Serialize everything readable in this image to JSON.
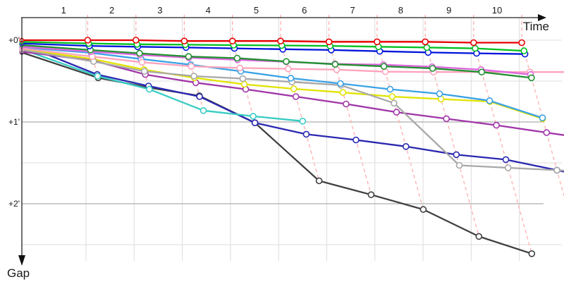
{
  "chart_data": {
    "type": "line",
    "title": "",
    "xlabel": "Time",
    "ylabel": "Gap",
    "x_axis": {
      "tick_labels": [
        "1",
        "2",
        "3",
        "4",
        "5",
        "6",
        "7",
        "8",
        "9",
        "10"
      ],
      "range_time_units": [
        0,
        11.4
      ]
    },
    "y_axis": {
      "tick_labels": [
        "+0'",
        "+1'",
        "+2'"
      ],
      "tick_gaps_minutes": [
        0,
        1,
        2
      ],
      "range_minutes": [
        0,
        2.75
      ],
      "direction": "down"
    },
    "grid": {
      "vertical_count": 10,
      "horizontal_gaps_minutes": [
        0,
        0.5,
        1,
        1.5,
        2,
        2.5
      ],
      "dark_gaps": [
        1,
        2
      ]
    },
    "controls": {
      "count": 10,
      "leader_crossing_times": [
        1.5,
        2.5,
        3.5,
        4.5,
        5.5,
        6.5,
        7.5,
        8.5,
        9.5,
        10.5
      ],
      "dashed_line_color": "#ffb0b0",
      "description": "dashed pink lines link the same control point across all runners"
    },
    "marker_style": {
      "fill": "#ffffff",
      "radius": 4
    },
    "series": [
      {
        "name": "red",
        "color": "#e80000",
        "start_gap": 0.0,
        "control_gaps": [
          0.0,
          0.0,
          0.01,
          0.01,
          0.01,
          0.02,
          0.02,
          0.02,
          0.03,
          0.03
        ],
        "extend_to_edge": false
      },
      {
        "name": "green",
        "color": "#00c020",
        "start_gap": 0.02,
        "control_gaps": [
          0.04,
          0.05,
          0.055,
          0.06,
          0.065,
          0.07,
          0.08,
          0.09,
          0.1,
          0.13
        ],
        "extend_to_edge": false
      },
      {
        "name": "blue",
        "color": "#0014dc",
        "start_gap": 0.04,
        "control_gaps": [
          0.07,
          0.08,
          0.09,
          0.1,
          0.11,
          0.12,
          0.135,
          0.15,
          0.16,
          0.17
        ],
        "extend_to_edge": false
      },
      {
        "name": "dark-green",
        "color": "#209030",
        "start_gap": 0.06,
        "control_gaps": [
          0.12,
          0.16,
          0.2,
          0.22,
          0.26,
          0.295,
          0.32,
          0.345,
          0.39,
          0.46
        ],
        "extend_to_edge": false
      },
      {
        "name": "violet",
        "color": "#dd66dd",
        "start_gap": 0.08,
        "control_gaps": [
          0.14,
          0.18,
          0.215,
          0.24,
          0.265,
          0.29,
          0.3,
          0.325,
          0.36,
          0.42
        ],
        "extend_to_edge": false
      },
      {
        "name": "pink",
        "color": "#ffa3bc",
        "start_gap": 0.1,
        "control_gaps": [
          0.2,
          0.27,
          0.32,
          0.34,
          0.35,
          0.36,
          0.385,
          0.39,
          0.39,
          0.39
        ],
        "extend_to_edge": true
      },
      {
        "name": "sky-blue",
        "color": "#3aa2e6",
        "start_gap": 0.09,
        "control_gaps": [
          0.155,
          0.23,
          0.3,
          0.38,
          0.465,
          0.53,
          0.6,
          0.655,
          0.74,
          0.95
        ],
        "extend_to_edge": false
      },
      {
        "name": "gray",
        "color": "#a8a8a8",
        "start_gap": 0.12,
        "control_gaps": [
          0.26,
          0.38,
          0.44,
          0.47,
          0.51,
          0.55,
          0.77,
          1.53,
          1.56,
          1.59
        ],
        "extend_to_edge": true
      },
      {
        "name": "yellow",
        "color": "#e2e200",
        "start_gap": 0.11,
        "control_gaps": [
          0.23,
          0.36,
          0.46,
          0.54,
          0.595,
          0.64,
          0.69,
          0.72,
          0.75,
          0.96
        ],
        "extend_to_edge": false
      },
      {
        "name": "purple",
        "color": "#a035a8",
        "start_gap": 0.14,
        "control_gaps": [
          0.25,
          0.42,
          0.52,
          0.6,
          0.69,
          0.78,
          0.88,
          0.96,
          1.04,
          1.13
        ],
        "extend_to_edge": true
      },
      {
        "name": "turquoise",
        "color": "#38ccc4",
        "start_gap": 0.11,
        "control_gaps": [
          0.44,
          0.6,
          0.86,
          0.93,
          0.99
        ],
        "extend_to_edge": false
      },
      {
        "name": "navy",
        "color": "#2a28b0",
        "start_gap": 0.05,
        "control_gaps": [
          0.42,
          0.56,
          0.69,
          1.01,
          1.15,
          1.22,
          1.3,
          1.4,
          1.46,
          1.59
        ],
        "extend_to_edge": true
      },
      {
        "name": "black",
        "color": "#404040",
        "start_gap": 0.15,
        "control_gaps": [
          0.46,
          0.58,
          0.68,
          1.01,
          1.72,
          1.89,
          2.07,
          2.4,
          2.61
        ],
        "extend_to_edge": false
      }
    ]
  },
  "colors": {
    "background": "#ffffff",
    "axis": "#222222",
    "grid_light": "#dcdcdc",
    "grid_dark": "#9a9a9a",
    "dashed_control": "#ffb0b0",
    "tick_text": "#1a1a1a"
  }
}
